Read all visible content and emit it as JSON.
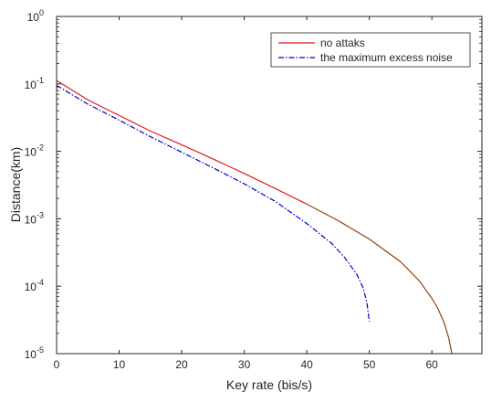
{
  "chart_data": {
    "type": "line",
    "title": "",
    "xlabel": "Key rate (bis/s)",
    "ylabel": "Distance(km)",
    "xlim": [
      0,
      68
    ],
    "ylim": [
      1e-05,
      1
    ],
    "yscale": "log",
    "grid": false,
    "legend_position": "top-right",
    "x_ticks": [
      "0",
      "10",
      "20",
      "30",
      "40",
      "50",
      "60"
    ],
    "y_ticks": [
      {
        "base": "10",
        "exp": "-5"
      },
      {
        "base": "10",
        "exp": "-4"
      },
      {
        "base": "10",
        "exp": "-3"
      },
      {
        "base": "10",
        "exp": "-2"
      },
      {
        "base": "10",
        "exp": "-1"
      },
      {
        "base": "10",
        "exp": "0"
      }
    ],
    "series": [
      {
        "name": "no attaks",
        "color": "#e41a1c",
        "color_after_40": "#8b4513",
        "style": "solid",
        "x": [
          0,
          5,
          10,
          15,
          20,
          25,
          30,
          35,
          40,
          45,
          50,
          55,
          58,
          60,
          61,
          62,
          62.7,
          63.2
        ],
        "y": [
          0.112,
          0.058,
          0.034,
          0.02,
          0.0125,
          0.0077,
          0.0047,
          0.0028,
          0.00165,
          0.00094,
          0.0005,
          0.00023,
          0.00012,
          6.6e-05,
          4.6e-05,
          2.8e-05,
          1.7e-05,
          1e-05
        ]
      },
      {
        "name": "the maximum excess noise",
        "color": "#0000cd",
        "style": "dashdot",
        "x": [
          0,
          5,
          10,
          15,
          20,
          25,
          30,
          35,
          40,
          44,
          46,
          48,
          49,
          49.6,
          50
        ],
        "y": [
          0.095,
          0.05,
          0.029,
          0.0165,
          0.0097,
          0.0057,
          0.0033,
          0.0018,
          0.00085,
          0.00043,
          0.00027,
          0.00015,
          9.5e-05,
          5.8e-05,
          3e-05
        ]
      }
    ]
  }
}
